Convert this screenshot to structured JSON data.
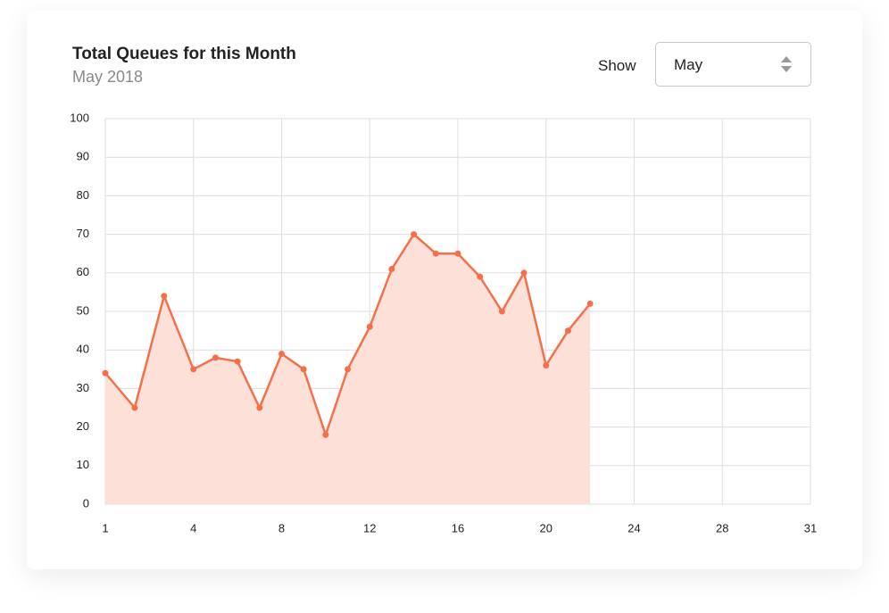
{
  "controls": {
    "label": "Show",
    "value": "May"
  },
  "chart_data": {
    "type": "area",
    "title": "Total Queues for this Month",
    "subtitle": "May 2018",
    "x": [
      1,
      2,
      3,
      4,
      5,
      6,
      7,
      8,
      9,
      10,
      11,
      12,
      13,
      14,
      15,
      16,
      17,
      18,
      19,
      20,
      21,
      22
    ],
    "values": [
      34,
      25,
      54,
      35,
      38,
      37,
      25,
      39,
      35,
      18,
      35,
      46,
      61,
      70,
      65,
      65,
      59,
      50,
      60,
      36,
      45,
      52
    ],
    "color": "#f4704a",
    "fill_color": "#fde0d8",
    "xlim": [
      1,
      31
    ],
    "xticks": [
      1,
      4,
      8,
      12,
      16,
      20,
      24,
      28,
      31
    ],
    "ylim": [
      0,
      100
    ],
    "yticks": [
      0,
      10,
      20,
      30,
      40,
      50,
      60,
      70,
      80,
      90,
      100
    ],
    "grid": true
  }
}
